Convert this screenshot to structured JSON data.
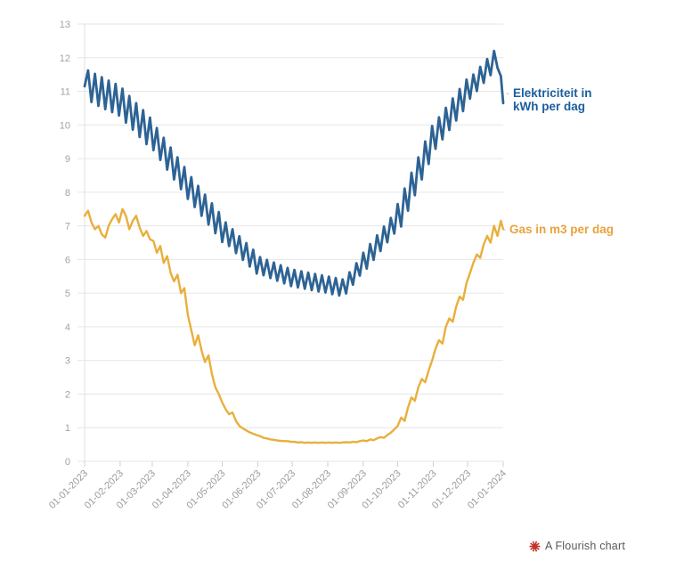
{
  "ui": {
    "dash": "-",
    "footer": {
      "label": "A Flourish chart",
      "icon_color": "#c23424",
      "text_color": "#595959"
    }
  },
  "chart_data": {
    "type": "line",
    "title": "",
    "xlabel": "",
    "ylabel": "",
    "grid": "horizontal",
    "legend_position": "right-of-line-end",
    "y_axis": {
      "min": 0,
      "max": 13,
      "tick_step": 1,
      "tick_labels": [
        "0",
        "1",
        "2",
        "3",
        "4",
        "5",
        "6",
        "7",
        "8",
        "9",
        "10",
        "11",
        "12",
        "13"
      ]
    },
    "x_axis": {
      "total_days": 365,
      "tick_days": [
        0,
        31,
        59,
        90,
        120,
        151,
        181,
        212,
        243,
        273,
        304,
        334,
        365
      ],
      "tick_labels": [
        "01-01-2023",
        "01-02-2023",
        "01-03-2023",
        "01-04-2023",
        "01-05-2023",
        "01-06-2023",
        "01-07-2023",
        "01-08-2023",
        "01-09-2023",
        "01-10-2023",
        "01-11-2023",
        "01-12-2023",
        "01-01-2024"
      ]
    },
    "days": [
      0,
      3,
      6,
      9,
      12,
      15,
      18,
      21,
      24,
      27,
      30,
      33,
      36,
      39,
      42,
      45,
      48,
      51,
      54,
      57,
      60,
      63,
      66,
      69,
      72,
      75,
      78,
      81,
      84,
      87,
      90,
      93,
      96,
      99,
      102,
      105,
      108,
      111,
      114,
      117,
      120,
      123,
      126,
      129,
      132,
      135,
      138,
      141,
      144,
      147,
      150,
      153,
      156,
      159,
      162,
      165,
      168,
      171,
      174,
      177,
      180,
      183,
      186,
      189,
      192,
      195,
      198,
      201,
      204,
      207,
      210,
      213,
      216,
      219,
      222,
      225,
      228,
      231,
      234,
      237,
      240,
      243,
      246,
      249,
      252,
      255,
      258,
      261,
      264,
      267,
      270,
      273,
      276,
      279,
      282,
      285,
      288,
      291,
      294,
      297,
      300,
      303,
      306,
      309,
      312,
      315,
      318,
      321,
      324,
      327,
      330,
      333,
      336,
      339,
      342,
      345,
      348,
      351,
      354,
      357,
      360,
      363,
      365
    ],
    "series": [
      {
        "name": "Elektriciteit in kWh per dag",
        "label_lines": [
          "Elektriciteit in",
          "kWh per dag"
        ],
        "color": "#2d6394",
        "label_color": "#1c5e9d",
        "values": [
          11.15,
          11.62,
          10.68,
          11.52,
          10.57,
          11.42,
          10.47,
          11.32,
          10.38,
          11.22,
          10.28,
          11.08,
          10.07,
          10.86,
          9.86,
          10.65,
          9.64,
          10.44,
          9.43,
          10.22,
          9.25,
          9.91,
          8.96,
          9.62,
          8.67,
          9.33,
          8.38,
          9.04,
          8.09,
          8.75,
          7.8,
          8.45,
          7.56,
          8.19,
          7.3,
          7.93,
          7.04,
          7.67,
          6.78,
          7.41,
          6.52,
          7.1,
          6.4,
          6.9,
          6.19,
          6.69,
          5.99,
          6.49,
          5.79,
          6.29,
          5.58,
          6.07,
          5.53,
          5.99,
          5.45,
          5.91,
          5.37,
          5.83,
          5.29,
          5.75,
          5.21,
          5.69,
          5.17,
          5.65,
          5.13,
          5.61,
          5.09,
          5.57,
          5.05,
          5.53,
          5.02,
          5.49,
          4.97,
          5.45,
          4.93,
          5.41,
          4.99,
          5.62,
          5.25,
          5.89,
          5.52,
          6.2,
          5.73,
          6.46,
          5.99,
          6.72,
          6.25,
          6.98,
          6.51,
          7.24,
          6.77,
          7.65,
          6.98,
          8.11,
          7.45,
          8.58,
          7.91,
          9.04,
          8.38,
          9.51,
          8.84,
          9.97,
          9.29,
          10.23,
          9.57,
          10.51,
          9.85,
          10.79,
          10.13,
          11.07,
          10.41,
          11.35,
          10.78,
          11.5,
          11.01,
          11.73,
          11.25,
          11.96,
          11.48,
          12.2,
          11.7,
          11.45,
          10.65
        ]
      },
      {
        "name": "Gas in m3 per dag",
        "label_lines": [
          "Gas in m3 per dag"
        ],
        "color": "#e9af3c",
        "label_color": "#e8a33b",
        "values": [
          7.3,
          7.45,
          7.1,
          6.9,
          7.0,
          6.75,
          6.65,
          7.0,
          7.2,
          7.35,
          7.1,
          7.5,
          7.3,
          6.9,
          7.15,
          7.3,
          6.95,
          6.7,
          6.85,
          6.6,
          6.55,
          6.2,
          6.4,
          5.9,
          6.1,
          5.6,
          5.35,
          5.55,
          5.0,
          5.15,
          4.35,
          3.9,
          3.45,
          3.75,
          3.3,
          2.95,
          3.15,
          2.6,
          2.2,
          2.0,
          1.75,
          1.55,
          1.4,
          1.45,
          1.2,
          1.05,
          0.98,
          0.92,
          0.86,
          0.82,
          0.78,
          0.75,
          0.7,
          0.68,
          0.65,
          0.64,
          0.62,
          0.61,
          0.6,
          0.6,
          0.58,
          0.58,
          0.56,
          0.57,
          0.55,
          0.56,
          0.55,
          0.56,
          0.55,
          0.56,
          0.55,
          0.56,
          0.55,
          0.56,
          0.55,
          0.56,
          0.57,
          0.56,
          0.58,
          0.57,
          0.6,
          0.62,
          0.6,
          0.65,
          0.63,
          0.68,
          0.72,
          0.7,
          0.78,
          0.85,
          0.95,
          1.05,
          1.3,
          1.2,
          1.6,
          1.9,
          1.8,
          2.2,
          2.45,
          2.35,
          2.7,
          3.0,
          3.35,
          3.6,
          3.5,
          4.0,
          4.25,
          4.15,
          4.6,
          4.9,
          4.8,
          5.3,
          5.6,
          5.9,
          6.15,
          6.05,
          6.45,
          6.7,
          6.5,
          7.0,
          6.7,
          7.15,
          6.9
        ]
      }
    ]
  }
}
